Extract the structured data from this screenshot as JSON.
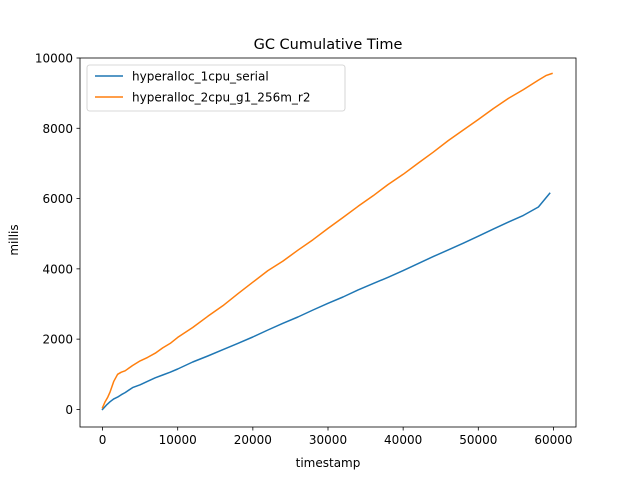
{
  "chart_data": {
    "type": "line",
    "title": "GC Cumulative Time",
    "xlabel": "timestamp",
    "ylabel": "millis",
    "xlim": [
      -3000,
      63000
    ],
    "ylim": [
      -500,
      10000
    ],
    "xticks": [
      0,
      10000,
      20000,
      30000,
      40000,
      50000,
      60000
    ],
    "yticks": [
      0,
      2000,
      4000,
      6000,
      8000,
      10000
    ],
    "legend_position": "top-left",
    "grid": false,
    "series": [
      {
        "name": "hyperalloc_1cpu_serial",
        "color": "#1f77b4",
        "x": [
          0,
          500,
          1000,
          1500,
          2000,
          2500,
          3000,
          4000,
          5000,
          6000,
          7000,
          8000,
          9000,
          10000,
          12000,
          14000,
          16000,
          18000,
          20000,
          22000,
          24000,
          26000,
          28000,
          30000,
          32000,
          34000,
          36000,
          38000,
          40000,
          42000,
          44000,
          46000,
          48000,
          50000,
          52000,
          54000,
          56000,
          58000,
          59500
        ],
        "values": [
          0,
          120,
          220,
          300,
          350,
          420,
          480,
          620,
          700,
          800,
          900,
          980,
          1060,
          1150,
          1350,
          1520,
          1700,
          1880,
          2060,
          2260,
          2450,
          2630,
          2830,
          3020,
          3200,
          3400,
          3580,
          3760,
          3950,
          4150,
          4350,
          4540,
          4730,
          4930,
          5130,
          5330,
          5520,
          5760,
          6150
        ]
      },
      {
        "name": "hyperalloc_2cpu_g1_256m_r2",
        "color": "#ff7f0e",
        "x": [
          0,
          300,
          700,
          1000,
          1500,
          2000,
          2500,
          3000,
          4000,
          5000,
          6000,
          7000,
          8000,
          9000,
          10000,
          12000,
          14000,
          16000,
          18000,
          20000,
          22000,
          24000,
          26000,
          28000,
          30000,
          32000,
          34000,
          36000,
          38000,
          40000,
          42000,
          44000,
          46000,
          48000,
          50000,
          52000,
          54000,
          56000,
          58000,
          59000,
          59800
        ],
        "values": [
          50,
          200,
          350,
          500,
          800,
          1000,
          1060,
          1100,
          1250,
          1380,
          1480,
          1600,
          1750,
          1880,
          2050,
          2330,
          2650,
          2950,
          3290,
          3620,
          3950,
          4220,
          4530,
          4830,
          5150,
          5460,
          5780,
          6080,
          6400,
          6690,
          7010,
          7320,
          7650,
          7950,
          8250,
          8560,
          8850,
          9100,
          9370,
          9500,
          9560
        ]
      }
    ]
  }
}
